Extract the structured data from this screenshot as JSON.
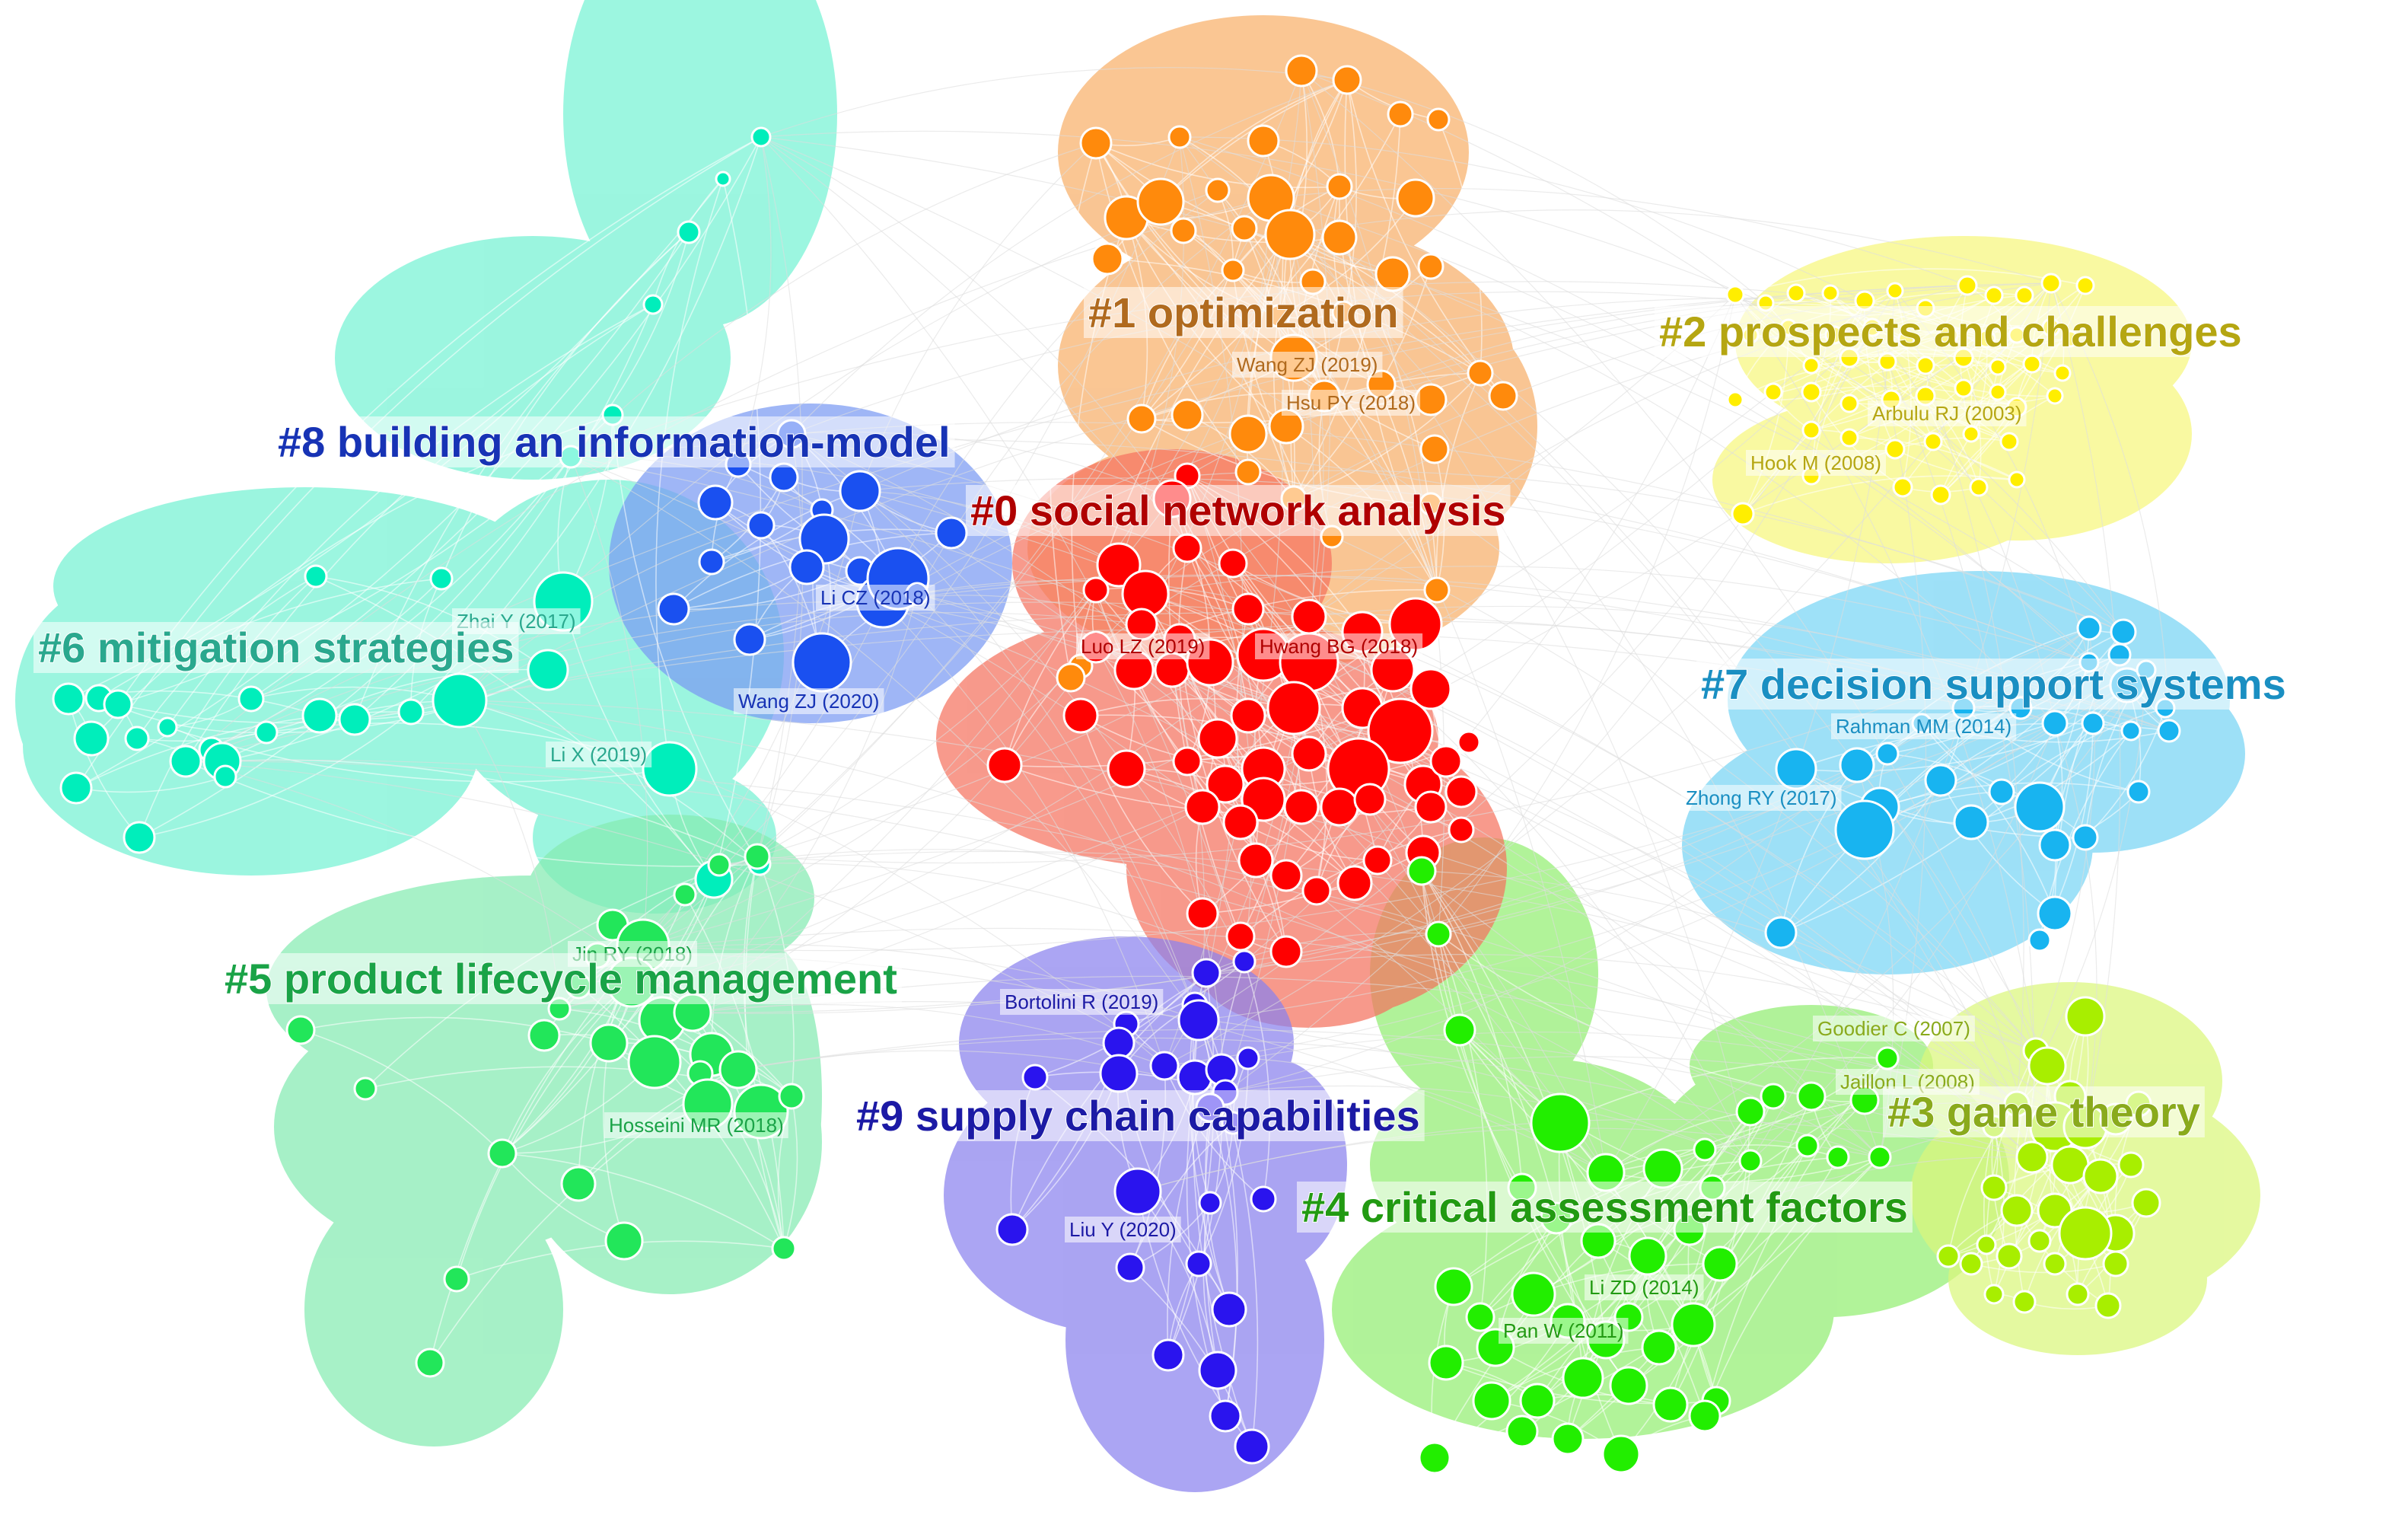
{
  "clusters": [
    {
      "id": "c0",
      "label": "#0 social network analysis",
      "color": "#ff0000",
      "hull": "#f5735f",
      "text_color": "#b00000",
      "refs": [
        {
          "text": "Luo LZ (2019)"
        },
        {
          "text": "Hwang BG (2018)"
        }
      ]
    },
    {
      "id": "c1",
      "label": "#1 optimization",
      "color": "#ff8a0c",
      "hull": "#f8b06a",
      "text_color": "#b06a1e",
      "refs": [
        {
          "text": "Wang ZJ (2019)"
        },
        {
          "text": "Hsu PY (2018)"
        }
      ]
    },
    {
      "id": "c2",
      "label": "#2 prospects and challenges",
      "color": "#ffee00",
      "hull": "#f7f77d",
      "text_color": "#b5a612",
      "refs": [
        {
          "text": "Arbulu RJ (2003)"
        },
        {
          "text": "Hook M (2008)"
        }
      ]
    },
    {
      "id": "c3",
      "label": "#3 game theory",
      "color": "#a8ee00",
      "hull": "#dbf77c",
      "text_color": "#8aaa1c",
      "refs": [
        {
          "text": "Goodier C (2007)"
        },
        {
          "text": "Jaillon L (2008)"
        }
      ]
    },
    {
      "id": "c4",
      "label": "#4 critical assessment factors",
      "color": "#22ee00",
      "hull": "#93ee72",
      "text_color": "#229a12",
      "refs": [
        {
          "text": "Li ZD (2014)"
        },
        {
          "text": "Pan W (2011)"
        }
      ]
    },
    {
      "id": "c5",
      "label": "#5 product lifecycle management",
      "color": "#22e65a",
      "hull": "#85ebb2",
      "text_color": "#1aa347",
      "refs": [
        {
          "text": "Jin RY (2018)"
        },
        {
          "text": "Hosseini MR (2018)"
        }
      ]
    },
    {
      "id": "c6",
      "label": "#6 mitigation strategies",
      "color": "#00eebb",
      "hull": "#76f2d4",
      "text_color": "#2aa88e",
      "refs": [
        {
          "text": "Zhai Y (2017)"
        },
        {
          "text": "Li X (2019)"
        }
      ]
    },
    {
      "id": "c7",
      "label": "#7 decision support systems",
      "color": "#18b4f0",
      "hull": "#78d5f5",
      "text_color": "#1a8fc2",
      "refs": [
        {
          "text": "Rahman MM (2014)"
        },
        {
          "text": "Zhong RY (2017)"
        }
      ]
    },
    {
      "id": "c8",
      "label": "#8 building an information-model",
      "color": "#1a50f0",
      "hull": "#7a9af2",
      "text_color": "#1733b5",
      "refs": [
        {
          "text": "Li CZ (2018)"
        },
        {
          "text": "Wang ZJ (2020)"
        }
      ]
    },
    {
      "id": "c9",
      "label": "#9 supply chain capabilities",
      "color": "#2a14ee",
      "hull": "#8a82ee",
      "text_color": "#1c1aa5",
      "refs": [
        {
          "text": "Bortolini R (2019)"
        },
        {
          "text": "Liu Y (2020)"
        }
      ]
    }
  ]
}
